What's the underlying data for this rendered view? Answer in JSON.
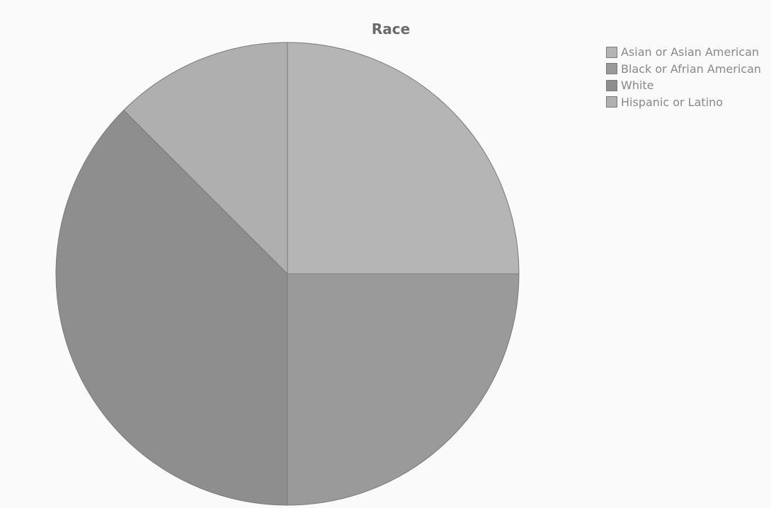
{
  "chart_data": {
    "type": "pie",
    "title": "Race",
    "legend_position": "top-right",
    "slices": [
      {
        "name": "Asian or Asian American",
        "value": 25,
        "color": "#b5b5b5"
      },
      {
        "name": "Black or Afrian American",
        "value": 25,
        "color": "#9a9a9a"
      },
      {
        "name": "White",
        "value": 37.5,
        "color": "#8e8e8e"
      },
      {
        "name": "Hispanic or Latino",
        "value": 12.5,
        "color": "#afafaf"
      }
    ]
  }
}
